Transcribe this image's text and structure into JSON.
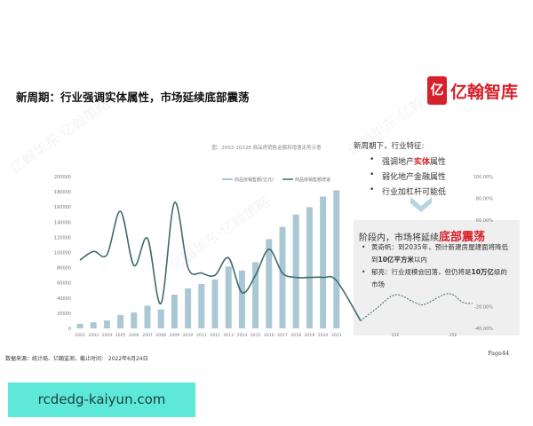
{
  "slide": {
    "title": "新周期：行业强调实体属性，市场延续底部震荡",
    "logo_mark": "亿",
    "logo_text": "亿翰智库",
    "source": "数据来源：统计局、亿翰监测，截止时间：  2022年6月24日",
    "page": "Page44",
    "watermark": "亿翰华东·亿翰策略"
  },
  "features": {
    "heading": "新周期下，行业特征:",
    "items": [
      {
        "pre": "强调地产",
        "em": "实体",
        "post": "属性"
      },
      {
        "pre": "弱化地产金融属性",
        "em": "",
        "post": ""
      },
      {
        "pre": "行业加杠杆可能低",
        "em": "",
        "post": ""
      }
    ],
    "icon": "chevron-down-icon"
  },
  "outlook": {
    "heading_pre": "阶段内，市场将延续",
    "heading_em": "底部震荡",
    "bullets": [
      {
        "pre": "黄奇帆：到2035年，预计新建房屋建面将降低到",
        "em": "10亿平方米",
        "post": "以内"
      },
      {
        "pre": "郁亮：行业规模会回落，但仍将是",
        "em": "10万亿",
        "post": "级的市场"
      }
    ]
  },
  "banner": {
    "text": "rcdedg-kaiyun.com",
    "color": "#5ee8da"
  },
  "chart_data": {
    "type": "bar+line",
    "title": "图：2002-2022E 商品房销售金额和增速走势示意",
    "categories": [
      "2002",
      "2003",
      "2004",
      "2005",
      "2006",
      "2007",
      "2008",
      "2009",
      "2010",
      "2011",
      "2012",
      "2013",
      "2014",
      "2015",
      "2016",
      "2017",
      "2018",
      "2019",
      "2020",
      "2021"
    ],
    "forecast_tick_labels": [
      "22E",
      "25E"
    ],
    "left_axis": {
      "range": [
        0,
        200000
      ],
      "ticks": [
        0,
        20000,
        40000,
        60000,
        80000,
        100000,
        120000,
        140000,
        160000,
        180000,
        200000
      ]
    },
    "right_axis": {
      "range": [
        -40,
        100
      ],
      "visible_ticks": [
        "100.00%",
        "80.00%",
        "60.00%",
        "-20.00%",
        "-40.00%"
      ]
    },
    "series": [
      {
        "name": "商品房销售额(亿元)",
        "type": "bar",
        "color": "#a9c8d4",
        "values": [
          6032,
          7956,
          10376,
          17576,
          20826,
          29889,
          25068,
          44355,
          52721,
          58589,
          64456,
          81428,
          76292,
          87281,
          117627,
          133701,
          149973,
          159725,
          173613,
          181930
        ]
      },
      {
        "name": "商品房销售额增速",
        "type": "line",
        "color": "#3f6b6b",
        "values": [
          23,
          31,
          28,
          68,
          18,
          43,
          -17,
          76,
          16,
          11,
          9,
          25,
          -7,
          9,
          33,
          11,
          7,
          7,
          7,
          4
        ]
      }
    ],
    "forecast_line": {
      "style": "dashed",
      "color": "#3f6b6b",
      "points": [
        [
          2020.2,
          -33
        ],
        [
          2021,
          -22
        ],
        [
          2022,
          -9
        ],
        [
          2023,
          -16
        ],
        [
          2023.5,
          -18
        ],
        [
          2024.5,
          -9
        ],
        [
          2025,
          -9
        ],
        [
          2025.5,
          -16
        ],
        [
          2026,
          -17
        ]
      ]
    },
    "legend": "top-right",
    "grid": false
  }
}
